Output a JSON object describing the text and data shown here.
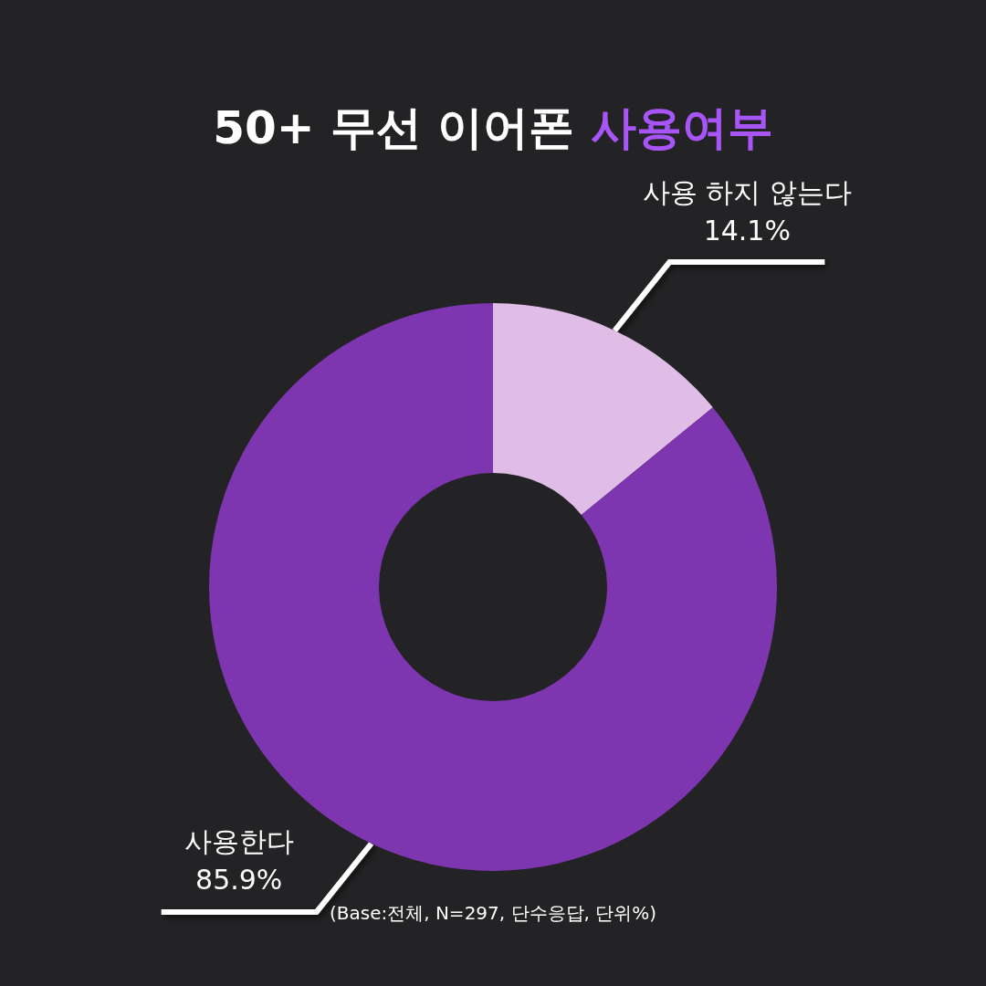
{
  "chart_data": {
    "type": "donut",
    "title": "50+ 무선 이어폰 사용여부",
    "categories": [
      "사용 하지 않는다",
      "사용한다"
    ],
    "values": [
      14.1,
      85.9
    ],
    "colors": [
      "#e0bde6",
      "#7e35b0"
    ],
    "value_labels": [
      "14.1%",
      "85.9%"
    ],
    "data_labels": true,
    "legend": false,
    "annotations": [
      "(Base:전체, N=297, 단수응답, 단위%)"
    ]
  }
}
